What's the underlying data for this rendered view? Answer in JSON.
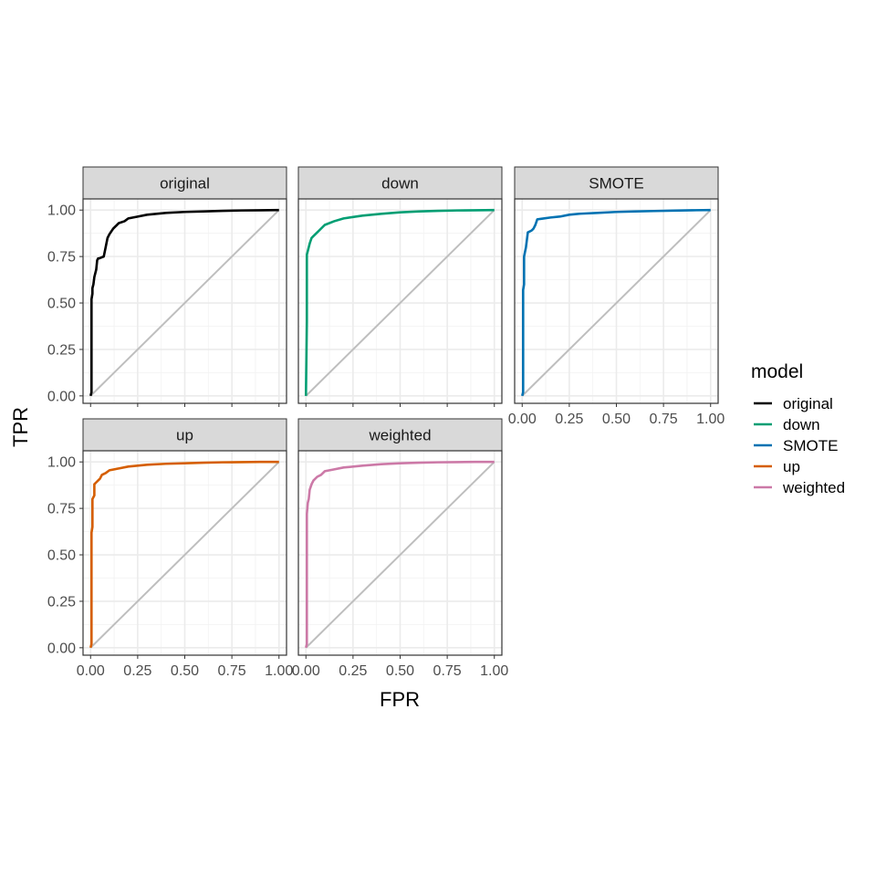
{
  "chart_data": {
    "type": "line",
    "xlabel": "FPR",
    "ylabel": "TPR",
    "xlim": [
      -0.04,
      1.04
    ],
    "ylim": [
      -0.04,
      1.06
    ],
    "x_ticks": [
      0,
      0.25,
      0.5,
      0.75,
      1
    ],
    "x_tick_labels": [
      "0.00",
      "0.25",
      "0.50",
      "0.75",
      "1.00"
    ],
    "y_ticks": [
      0,
      0.25,
      0.5,
      0.75,
      1
    ],
    "y_tick_labels": [
      "0.00",
      "0.25",
      "0.50",
      "0.75",
      "1.00"
    ],
    "grid": true,
    "reference_line": {
      "x": [
        0,
        1
      ],
      "y": [
        0,
        1
      ],
      "color": "#bebebe"
    },
    "legend": {
      "title": "model",
      "position": "right"
    },
    "facets": [
      {
        "name": "original",
        "color": "#000000",
        "x": [
          0,
          0.005,
          0.005,
          0.01,
          0.01,
          0.015,
          0.02,
          0.03,
          0.035,
          0.04,
          0.045,
          0.07,
          0.08,
          0.09,
          0.1,
          0.12,
          0.15,
          0.18,
          0.2,
          0.25,
          0.3,
          0.4,
          0.5,
          0.6,
          0.7,
          0.8,
          0.9,
          1.0
        ],
        "y": [
          0,
          0.02,
          0.52,
          0.55,
          0.58,
          0.6,
          0.64,
          0.68,
          0.73,
          0.74,
          0.74,
          0.75,
          0.8,
          0.85,
          0.87,
          0.9,
          0.93,
          0.94,
          0.955,
          0.965,
          0.975,
          0.985,
          0.99,
          0.993,
          0.996,
          0.998,
          0.999,
          1.0
        ]
      },
      {
        "name": "down",
        "color": "#009E73",
        "x": [
          0,
          0.005,
          0.005,
          0.01,
          0.02,
          0.03,
          0.04,
          0.05,
          0.07,
          0.1,
          0.15,
          0.2,
          0.3,
          0.4,
          0.5,
          0.6,
          0.7,
          0.8,
          0.9,
          1.0
        ],
        "y": [
          0,
          0.4,
          0.76,
          0.78,
          0.82,
          0.85,
          0.86,
          0.87,
          0.89,
          0.92,
          0.94,
          0.955,
          0.97,
          0.98,
          0.988,
          0.993,
          0.996,
          0.998,
          0.999,
          1.0
        ]
      },
      {
        "name": "SMOTE",
        "color": "#0072B2",
        "x": [
          0,
          0.005,
          0.005,
          0.01,
          0.01,
          0.02,
          0.03,
          0.05,
          0.06,
          0.07,
          0.08,
          0.1,
          0.15,
          0.2,
          0.25,
          0.3,
          0.4,
          0.5,
          0.6,
          0.7,
          0.8,
          0.9,
          1.0
        ],
        "y": [
          0,
          0.02,
          0.57,
          0.6,
          0.75,
          0.8,
          0.88,
          0.89,
          0.9,
          0.92,
          0.95,
          0.953,
          0.96,
          0.965,
          0.975,
          0.98,
          0.985,
          0.99,
          0.993,
          0.995,
          0.997,
          0.999,
          1.0
        ]
      },
      {
        "name": "up",
        "color": "#D55E00",
        "x": [
          0,
          0.005,
          0.005,
          0.01,
          0.01,
          0.02,
          0.02,
          0.03,
          0.04,
          0.05,
          0.06,
          0.08,
          0.1,
          0.15,
          0.2,
          0.3,
          0.4,
          0.5,
          0.6,
          0.7,
          0.8,
          0.9,
          1.0
        ],
        "y": [
          0,
          0.02,
          0.62,
          0.65,
          0.8,
          0.82,
          0.88,
          0.89,
          0.9,
          0.91,
          0.93,
          0.94,
          0.955,
          0.965,
          0.975,
          0.985,
          0.99,
          0.993,
          0.996,
          0.998,
          0.999,
          1.0,
          1.0
        ]
      },
      {
        "name": "weighted",
        "color": "#CC79A7",
        "x": [
          0,
          0.005,
          0.005,
          0.01,
          0.015,
          0.02,
          0.03,
          0.04,
          0.06,
          0.08,
          0.1,
          0.15,
          0.2,
          0.3,
          0.4,
          0.5,
          0.6,
          0.7,
          0.8,
          0.9,
          1.0
        ],
        "y": [
          0,
          0.02,
          0.72,
          0.78,
          0.8,
          0.85,
          0.88,
          0.9,
          0.92,
          0.93,
          0.95,
          0.96,
          0.97,
          0.98,
          0.988,
          0.993,
          0.996,
          0.998,
          0.999,
          1.0,
          1.0
        ]
      }
    ]
  }
}
